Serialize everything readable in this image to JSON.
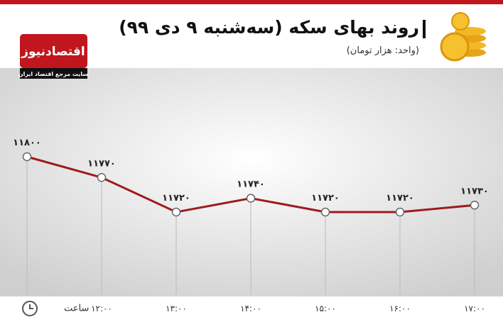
{
  "chart_data": {
    "type": "line",
    "title": "روند بهای سکه (سه‌شنبه ۹ دی ۹۹)",
    "subtitle": "(واحد: هزار تومان)",
    "brand": "اقتصادنیوز",
    "brand_tagline": "سایت مرجع اقتصاد ایران",
    "x_label": "ساعت",
    "categories": [
      null,
      "۱۲:۰۰",
      "۱۳:۰۰",
      "۱۴:۰۰",
      "۱۵:۰۰",
      "۱۶:۰۰",
      "۱۷:۰۰"
    ],
    "values": [
      11800,
      11770,
      11720,
      11740,
      11720,
      11720,
      11730
    ],
    "value_labels": [
      "۱۱۸۰۰",
      "۱۱۷۷۰",
      "۱۱۷۲۰",
      "۱۱۷۴۰",
      "۱۱۷۲۰",
      "۱۱۷۲۰",
      "۱۱۷۳۰"
    ],
    "color": "#9e1b1e"
  }
}
